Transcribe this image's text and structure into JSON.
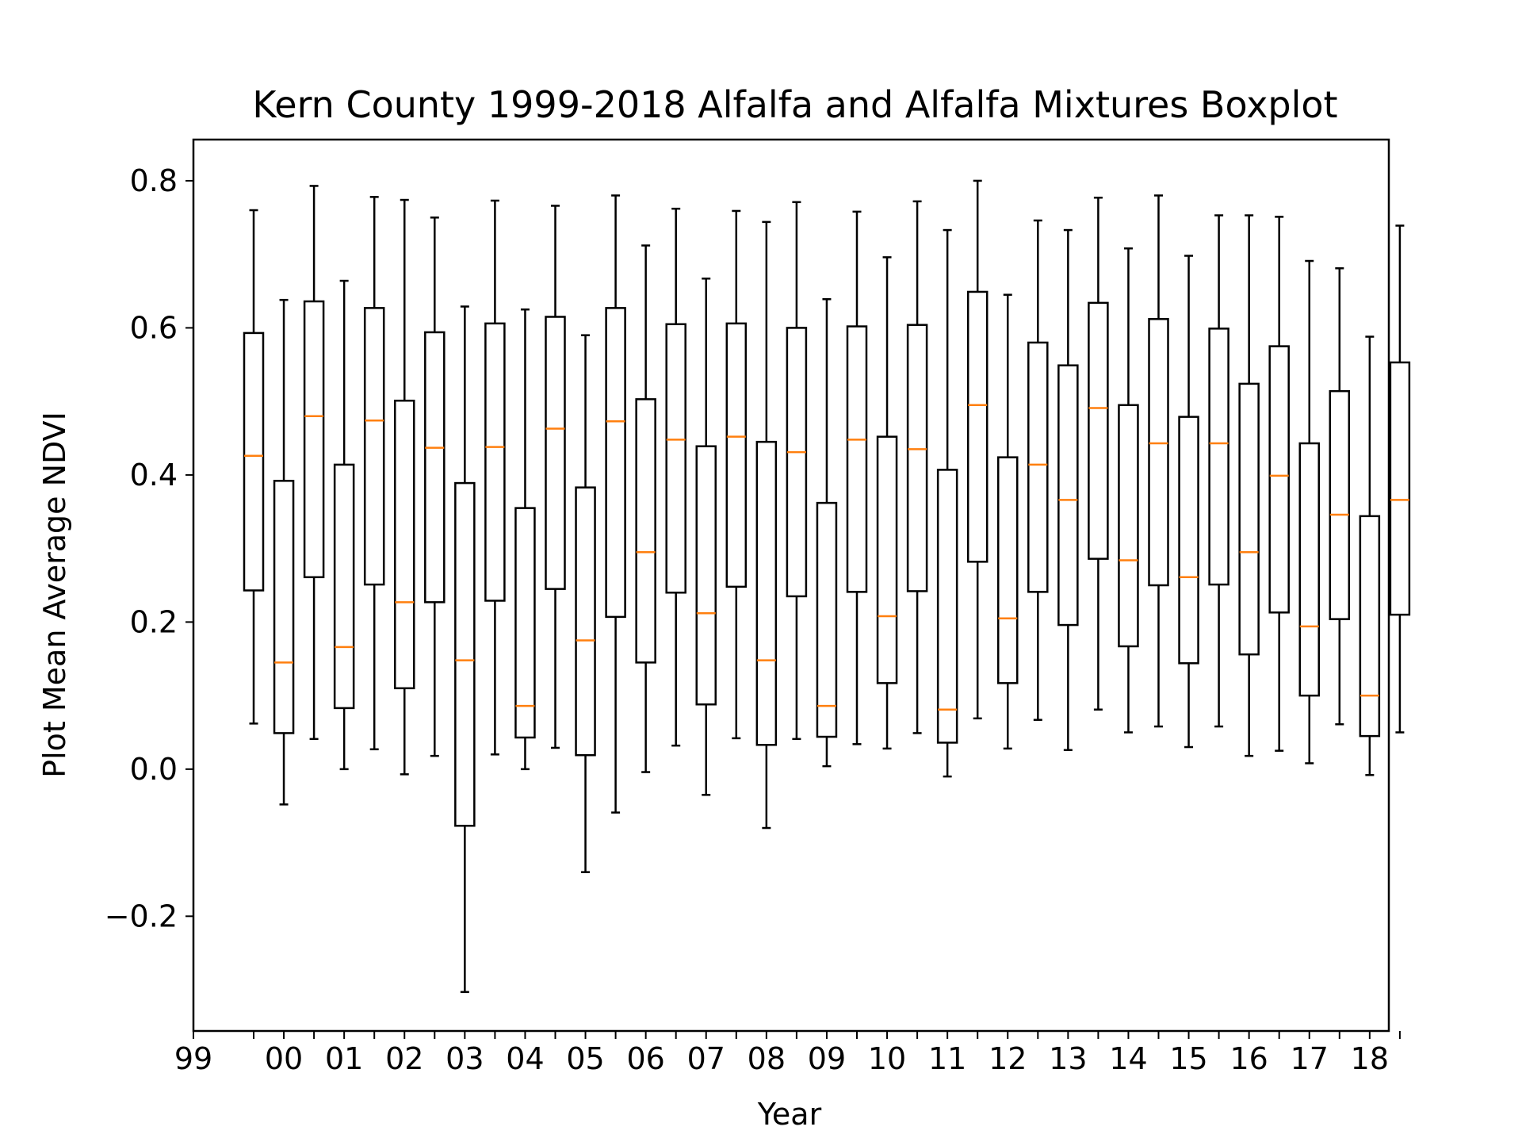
{
  "chart_data": {
    "type": "boxplot",
    "title": "Kern County 1999-2018 Alfalfa and Alfalfa Mixtures Boxplot",
    "xlabel": "Year",
    "ylabel": "Plot Mean Average NDVI",
    "ylim": [
      -0.356,
      0.856
    ],
    "yticks": [
      -0.2,
      0.0,
      0.2,
      0.4,
      0.6,
      0.8
    ],
    "ytick_labels": [
      "−0.2",
      "0.0",
      "0.2",
      "0.4",
      "0.6",
      "0.8"
    ],
    "xtick_labels": [
      "99",
      "00",
      "01",
      "02",
      "03",
      "04",
      "05",
      "06",
      "07",
      "08",
      "09",
      "10",
      "11",
      "12",
      "13",
      "14",
      "15",
      "16",
      "17",
      "18"
    ],
    "grid": false,
    "colors": {
      "box": "#000000",
      "median": "#ff7f0e",
      "background": "#ffffff"
    },
    "boxes": [
      {
        "whislo": 0.062,
        "q1": 0.243,
        "med": 0.426,
        "q3": 0.593,
        "whishi": 0.76
      },
      {
        "whislo": -0.048,
        "q1": 0.049,
        "med": 0.145,
        "q3": 0.392,
        "whishi": 0.638
      },
      {
        "whislo": 0.041,
        "q1": 0.261,
        "med": 0.48,
        "q3": 0.636,
        "whishi": 0.793
      },
      {
        "whislo": 0.0,
        "q1": 0.083,
        "med": 0.166,
        "q3": 0.414,
        "whishi": 0.664
      },
      {
        "whislo": 0.027,
        "q1": 0.251,
        "med": 0.474,
        "q3": 0.627,
        "whishi": 0.778
      },
      {
        "whislo": -0.007,
        "q1": 0.11,
        "med": 0.227,
        "q3": 0.501,
        "whishi": 0.774
      },
      {
        "whislo": 0.018,
        "q1": 0.227,
        "med": 0.437,
        "q3": 0.594,
        "whishi": 0.75
      },
      {
        "whislo": -0.303,
        "q1": -0.077,
        "med": 0.148,
        "q3": 0.389,
        "whishi": 0.629
      },
      {
        "whislo": 0.02,
        "q1": 0.229,
        "med": 0.438,
        "q3": 0.606,
        "whishi": 0.773
      },
      {
        "whislo": 0.0,
        "q1": 0.043,
        "med": 0.086,
        "q3": 0.355,
        "whishi": 0.625
      },
      {
        "whislo": 0.029,
        "q1": 0.245,
        "med": 0.463,
        "q3": 0.615,
        "whishi": 0.766
      },
      {
        "whislo": -0.14,
        "q1": 0.019,
        "med": 0.175,
        "q3": 0.383,
        "whishi": 0.59
      },
      {
        "whislo": -0.059,
        "q1": 0.207,
        "med": 0.473,
        "q3": 0.627,
        "whishi": 0.78
      },
      {
        "whislo": -0.004,
        "q1": 0.145,
        "med": 0.295,
        "q3": 0.503,
        "whishi": 0.712
      },
      {
        "whislo": 0.032,
        "q1": 0.24,
        "med": 0.448,
        "q3": 0.605,
        "whishi": 0.762
      },
      {
        "whislo": -0.035,
        "q1": 0.088,
        "med": 0.212,
        "q3": 0.439,
        "whishi": 0.667
      },
      {
        "whislo": 0.042,
        "q1": 0.248,
        "med": 0.452,
        "q3": 0.606,
        "whishi": 0.759
      },
      {
        "whislo": -0.08,
        "q1": 0.033,
        "med": 0.148,
        "q3": 0.445,
        "whishi": 0.744
      },
      {
        "whislo": 0.041,
        "q1": 0.235,
        "med": 0.431,
        "q3": 0.6,
        "whishi": 0.771
      },
      {
        "whislo": 0.004,
        "q1": 0.044,
        "med": 0.086,
        "q3": 0.362,
        "whishi": 0.639
      },
      {
        "whislo": 0.034,
        "q1": 0.241,
        "med": 0.448,
        "q3": 0.602,
        "whishi": 0.758
      },
      {
        "whislo": 0.028,
        "q1": 0.117,
        "med": 0.208,
        "q3": 0.452,
        "whishi": 0.696
      },
      {
        "whislo": 0.049,
        "q1": 0.242,
        "med": 0.435,
        "q3": 0.604,
        "whishi": 0.772
      },
      {
        "whislo": -0.01,
        "q1": 0.036,
        "med": 0.081,
        "q3": 0.407,
        "whishi": 0.733
      },
      {
        "whislo": 0.069,
        "q1": 0.282,
        "med": 0.495,
        "q3": 0.649,
        "whishi": 0.8
      },
      {
        "whislo": 0.028,
        "q1": 0.117,
        "med": 0.205,
        "q3": 0.424,
        "whishi": 0.645
      },
      {
        "whislo": 0.067,
        "q1": 0.241,
        "med": 0.414,
        "q3": 0.58,
        "whishi": 0.746
      },
      {
        "whislo": 0.026,
        "q1": 0.196,
        "med": 0.366,
        "q3": 0.549,
        "whishi": 0.733
      },
      {
        "whislo": 0.081,
        "q1": 0.286,
        "med": 0.491,
        "q3": 0.634,
        "whishi": 0.777
      },
      {
        "whislo": 0.05,
        "q1": 0.167,
        "med": 0.284,
        "q3": 0.495,
        "whishi": 0.708
      },
      {
        "whislo": 0.058,
        "q1": 0.25,
        "med": 0.443,
        "q3": 0.612,
        "whishi": 0.78
      },
      {
        "whislo": 0.03,
        "q1": 0.144,
        "med": 0.261,
        "q3": 0.479,
        "whishi": 0.698
      },
      {
        "whislo": 0.058,
        "q1": 0.251,
        "med": 0.443,
        "q3": 0.599,
        "whishi": 0.753
      },
      {
        "whislo": 0.018,
        "q1": 0.156,
        "med": 0.295,
        "q3": 0.524,
        "whishi": 0.753
      },
      {
        "whislo": 0.025,
        "q1": 0.213,
        "med": 0.399,
        "q3": 0.575,
        "whishi": 0.751
      },
      {
        "whislo": 0.008,
        "q1": 0.1,
        "med": 0.194,
        "q3": 0.443,
        "whishi": 0.691
      },
      {
        "whislo": 0.061,
        "q1": 0.204,
        "med": 0.346,
        "q3": 0.514,
        "whishi": 0.681
      },
      {
        "whislo": -0.008,
        "q1": 0.045,
        "med": 0.1,
        "q3": 0.344,
        "whishi": 0.588
      },
      {
        "whislo": 0.05,
        "q1": 0.21,
        "med": 0.366,
        "q3": 0.553,
        "whishi": 0.739
      }
    ]
  }
}
